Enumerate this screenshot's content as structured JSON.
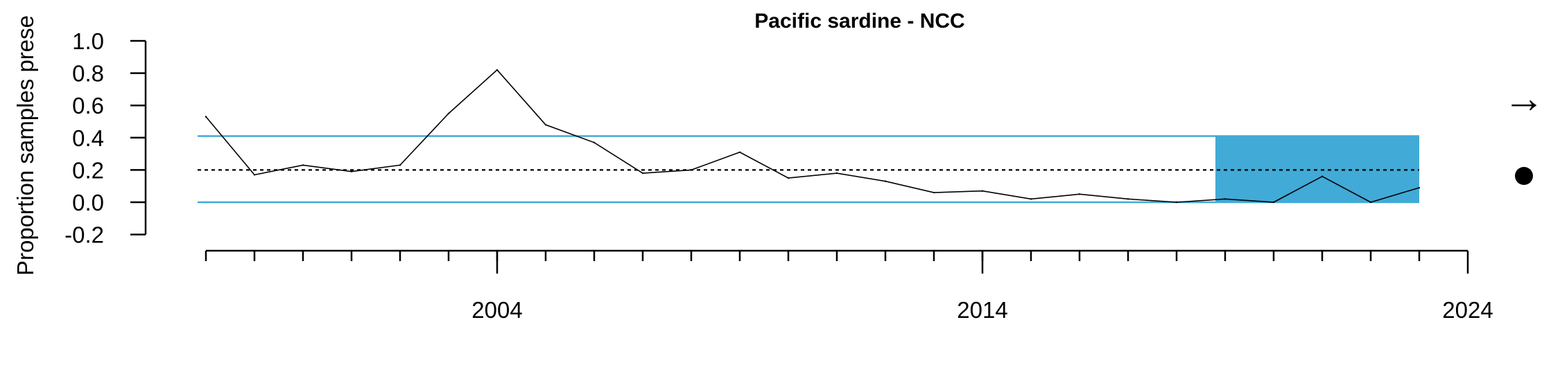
{
  "chart_data": {
    "type": "line",
    "title": "Pacific sardine - NCC",
    "ylabel": "Proportion samples prese",
    "xlabel": "",
    "xlim": [
      1996,
      2024
    ],
    "ylim": [
      -0.2,
      1.0
    ],
    "yticks": [
      -0.2,
      0.0,
      0.2,
      0.4,
      0.6,
      0.8,
      1.0
    ],
    "ytick_labels": [
      "-0.2",
      "0.0",
      "0.2",
      "0.4",
      "0.6",
      "0.8",
      "1.0"
    ],
    "xticks_major": [
      2004,
      2014,
      2024
    ],
    "xtick_labels": [
      "2004",
      "2014",
      "2024"
    ],
    "xticks_minor": [
      1998,
      1999,
      2000,
      2001,
      2002,
      2003,
      2004,
      2005,
      2006,
      2007,
      2008,
      2009,
      2010,
      2011,
      2012,
      2013,
      2014,
      2015,
      2016,
      2017,
      2018,
      2019,
      2020,
      2021,
      2022,
      2023
    ],
    "x": [
      1998,
      1999,
      2000,
      2001,
      2002,
      2003,
      2004,
      2005,
      2006,
      2007,
      2008,
      2009,
      2010,
      2011,
      2012,
      2013,
      2014,
      2015,
      2016,
      2017,
      2018,
      2019,
      2020,
      2021,
      2022,
      2023
    ],
    "series": [
      {
        "values": [
          0.53,
          0.17,
          0.23,
          0.19,
          0.23,
          0.55,
          0.82,
          0.48,
          0.37,
          0.18,
          0.2,
          0.31,
          0.15,
          0.18,
          0.13,
          0.06,
          0.07,
          0.02,
          0.05,
          0.02,
          0.0,
          0.02,
          0.0,
          0.16,
          0.0,
          0.09
        ]
      }
    ],
    "mean": 0.2,
    "upper_sd": 0.41,
    "lower_sd": 0.0,
    "recent_window": [
      2019,
      2023
    ],
    "colors": {
      "line": "#000000",
      "bands": "#41aad6",
      "shade": "#41aad6"
    },
    "trend_indicator": {
      "icon": "right-arrow-icon",
      "glyph": "→"
    },
    "mean_indicator": {
      "icon": "filled-circle-icon"
    }
  }
}
